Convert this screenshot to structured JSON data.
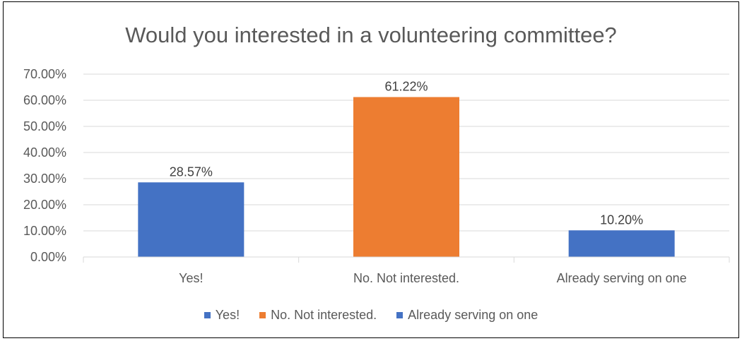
{
  "chart_data": {
    "type": "bar",
    "title": "Would you interested in a volunteering committee?",
    "categories": [
      "Yes!",
      "No. Not interested.",
      "Already serving on one"
    ],
    "values": [
      28.57,
      61.22,
      10.2
    ],
    "data_labels": [
      "28.57%",
      "61.22%",
      "10.20%"
    ],
    "colors": [
      "#4472C4",
      "#ED7D31",
      "#4472C4"
    ],
    "ylim": [
      0,
      70
    ],
    "yticks": [
      0,
      10,
      20,
      30,
      40,
      50,
      60,
      70
    ],
    "ytick_labels": [
      "0.00%",
      "10.00%",
      "20.00%",
      "30.00%",
      "40.00%",
      "50.00%",
      "60.00%",
      "70.00%"
    ],
    "grid": true,
    "legend_position": "bottom",
    "legend": [
      {
        "label": "Yes!",
        "color": "#4472C4"
      },
      {
        "label": "No. Not interested.",
        "color": "#ED7D31"
      },
      {
        "label": "Already serving on one",
        "color": "#4472C4"
      }
    ]
  }
}
